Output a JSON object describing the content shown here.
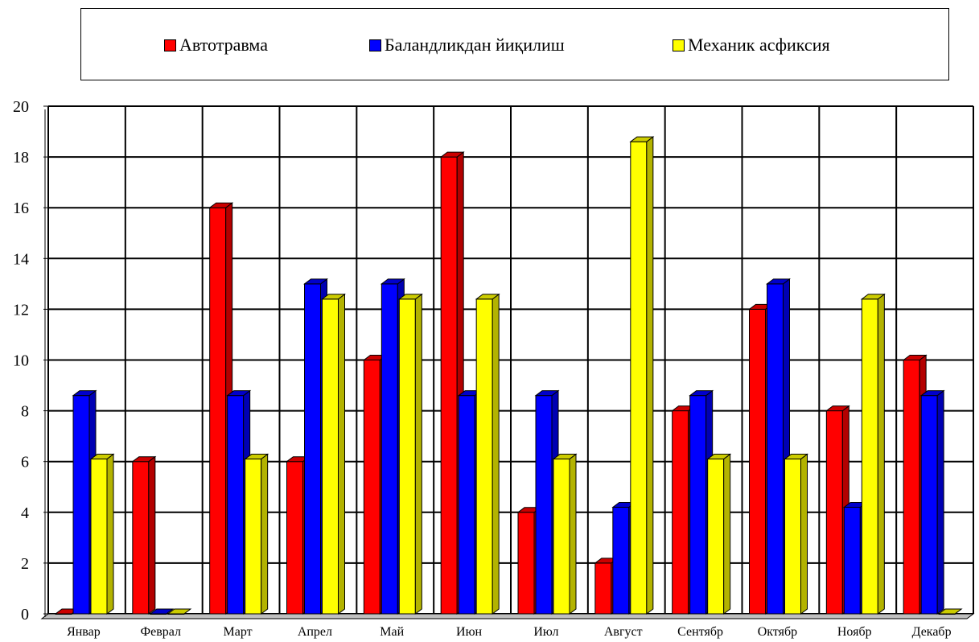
{
  "chart_data": {
    "type": "bar",
    "title": "",
    "xlabel": "",
    "ylabel": "",
    "categories": [
      "Январ",
      "Феврал",
      "Март",
      "Апрел",
      "Май",
      "Июн",
      "Июл",
      "Август",
      "Сентябр",
      "Октябр",
      "Ноябр",
      "Декабр"
    ],
    "series": [
      {
        "name": "Автотравма",
        "color": "#ff0000",
        "values": [
          0,
          6,
          16,
          6,
          10,
          18,
          4,
          2,
          8,
          12,
          8,
          10
        ]
      },
      {
        "name": "Баландликдан йиқилиш",
        "color": "#0000ff",
        "values": [
          8.6,
          0,
          8.6,
          13,
          13,
          8.6,
          8.6,
          4.2,
          8.6,
          13,
          4.2,
          8.6
        ]
      },
      {
        "name": "Механик асфиксия",
        "color": "#ffff00",
        "values": [
          6.1,
          0,
          6.1,
          12.4,
          12.4,
          12.4,
          6.1,
          18.6,
          6.1,
          6.1,
          12.4,
          0
        ]
      }
    ],
    "ylim": [
      0,
      20
    ],
    "yticks": [
      0,
      2,
      4,
      6,
      8,
      10,
      12,
      14,
      16,
      18,
      20
    ],
    "grid": true,
    "legend_position": "top"
  }
}
